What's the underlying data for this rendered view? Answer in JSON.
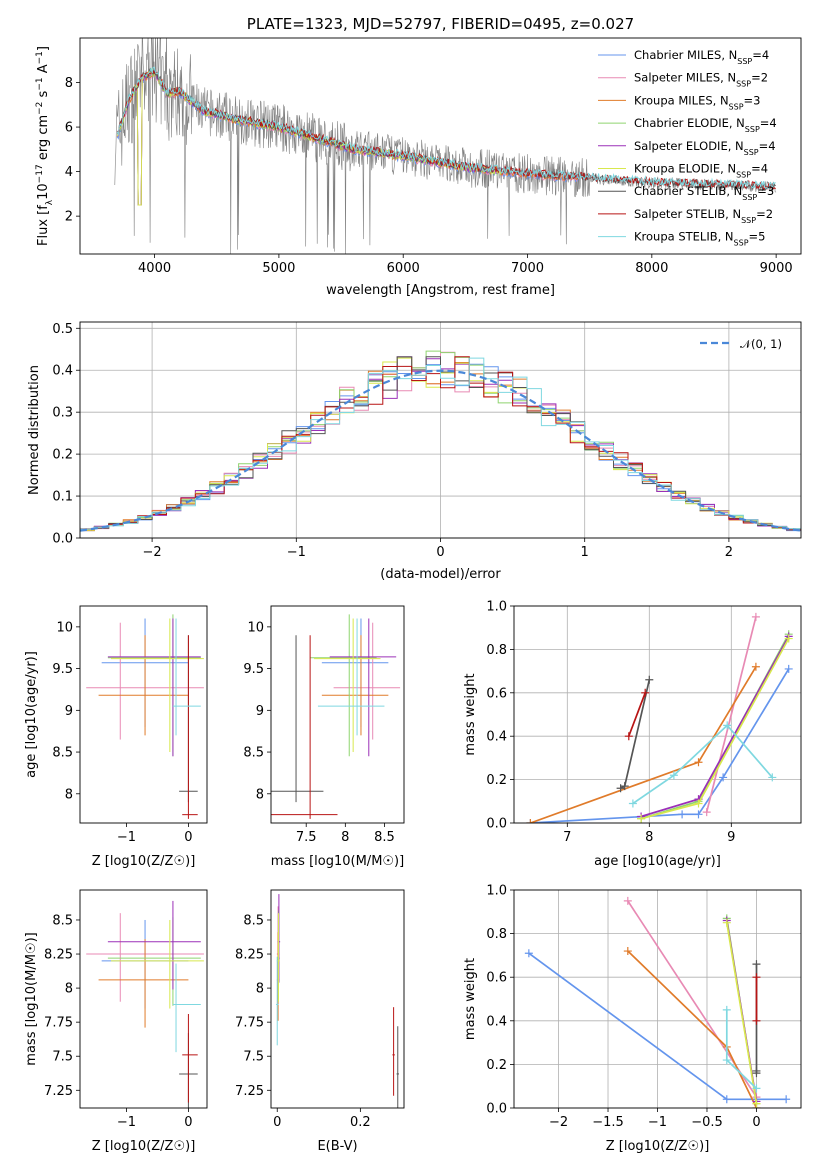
{
  "colors": {
    "chabrier_miles": "#6495ed",
    "salpeter_miles": "#e88ab4",
    "kroupa_miles": "#e07b2a",
    "chabrier_elodie": "#8fd46f",
    "salpeter_elodie": "#9b30b8",
    "kroupa_elodie": "#d8e84e",
    "chabrier_stelib": "#555555",
    "salpeter_stelib": "#b81414",
    "kroupa_stelib": "#7fd8e0",
    "data": "#808080",
    "gaussian": "#4a88d8"
  },
  "chart_data": [
    {
      "id": "spectrum",
      "type": "line",
      "title": "PLATE=1323, MJD=52797, FIBERID=0495, z=0.027",
      "xlabel": "wavelength [Angstrom, rest frame]",
      "ylabel": "Flux [f_λ10^-17 erg cm^-2 s^-1 A^-1]",
      "xlim": [
        3400,
        9200
      ],
      "ylim": [
        0.3,
        10
      ],
      "xticks": [
        4000,
        5000,
        6000,
        7000,
        8000,
        9000
      ],
      "yticks": [
        2,
        4,
        6,
        8
      ],
      "continuum_x": [
        3700,
        3800,
        3900,
        4000,
        4100,
        4200,
        4400,
        4700,
        5000,
        5300,
        5600,
        6000,
        6500,
        7000,
        7500,
        8000,
        8500,
        9000
      ],
      "continuum_y": [
        5.6,
        7.3,
        8.2,
        8.5,
        7.5,
        7.6,
        6.7,
        6.3,
        6.0,
        5.5,
        5.0,
        4.7,
        4.2,
        3.9,
        3.7,
        3.5,
        3.4,
        3.3
      ],
      "legend": [
        {
          "name": "Chabrier MILES, N",
          "sub": "SSP",
          "tail": "=4",
          "color": "#6495ed"
        },
        {
          "name": "Salpeter MILES, N",
          "sub": "SSP",
          "tail": "=2",
          "color": "#e88ab4"
        },
        {
          "name": "Kroupa MILES, N",
          "sub": "SSP",
          "tail": "=3",
          "color": "#e07b2a"
        },
        {
          "name": "Chabrier ELODIE, N",
          "sub": "SSP",
          "tail": "=4",
          "color": "#8fd46f"
        },
        {
          "name": "Salpeter ELODIE, N",
          "sub": "SSP",
          "tail": "=4",
          "color": "#9b30b8"
        },
        {
          "name": "Kroupa ELODIE, N",
          "sub": "SSP",
          "tail": "=4",
          "color": "#d8e84e"
        },
        {
          "name": "Chabrier STELIB, N",
          "sub": "SSP",
          "tail": "=3",
          "color": "#555555"
        },
        {
          "name": "Salpeter STELIB, N",
          "sub": "SSP",
          "tail": "=2",
          "color": "#b81414"
        },
        {
          "name": "Kroupa STELIB, N",
          "sub": "SSP",
          "tail": "=5",
          "color": "#7fd8e0"
        }
      ]
    },
    {
      "id": "residuals",
      "type": "step",
      "xlabel": "(data-model)/error",
      "ylabel": "Normed distribution",
      "xlim": [
        -2.5,
        2.5
      ],
      "ylim": [
        0,
        0.515
      ],
      "xticks": [
        -2,
        -1,
        0,
        1,
        2
      ],
      "yticks": [
        0.0,
        0.1,
        0.2,
        0.3,
        0.4,
        0.5
      ],
      "legend_label": "𝒩(0, 1)",
      "bin_width": 0.1
    },
    {
      "id": "age_vs_Z",
      "type": "errorbar",
      "xlabel": "Z [log10(Z/Z☉)]",
      "ylabel": "age [log10(age/yr)]",
      "xlim": [
        -1.75,
        0.3
      ],
      "ylim": [
        7.65,
        10.25
      ],
      "xticks": [
        -1,
        0
      ],
      "yticks": [
        8.0,
        8.5,
        9.0,
        9.5,
        10.0
      ]
    },
    {
      "id": "age_vs_mass",
      "type": "errorbar",
      "xlabel": "mass [log10(M/M☉)]",
      "ylabel": "",
      "xlim": [
        7.05,
        8.75
      ],
      "ylim": [
        7.65,
        10.25
      ],
      "xticks": [
        7.5,
        8.0,
        8.5
      ],
      "yticks": [
        8.0,
        8.5,
        9.0,
        9.5,
        10.0
      ]
    },
    {
      "id": "mass_weight_vs_age",
      "type": "line",
      "xlabel": "age [log10(age/yr)]",
      "ylabel": "mass weight",
      "xlim": [
        6.35,
        9.85
      ],
      "ylim": [
        0,
        1.0
      ],
      "xticks": [
        7,
        8,
        9
      ],
      "yticks": [
        0.0,
        0.2,
        0.4,
        0.6,
        0.8,
        1.0
      ]
    },
    {
      "id": "mass_vs_Z",
      "type": "errorbar",
      "xlabel": "Z [log10(Z/Z☉)]",
      "ylabel": "mass [log10(M/M☉)]",
      "xlim": [
        -1.75,
        0.3
      ],
      "ylim": [
        7.12,
        8.72
      ],
      "xticks": [
        -1,
        0
      ],
      "yticks": [
        7.25,
        7.5,
        7.75,
        8.0,
        8.25,
        8.5
      ]
    },
    {
      "id": "mass_vs_EBV",
      "type": "errorbar",
      "xlabel": "E(B-V)",
      "ylabel": "",
      "xlim": [
        -0.015,
        0.305
      ],
      "ylim": [
        7.12,
        8.72
      ],
      "xticks": [
        0.0,
        0.2
      ],
      "yticks": [
        7.25,
        7.5,
        7.75,
        8.0,
        8.25,
        8.5
      ]
    },
    {
      "id": "mass_weight_vs_Z",
      "type": "line",
      "xlabel": "Z [log10(Z/Z☉)]",
      "ylabel": "mass weight",
      "xlim": [
        -2.45,
        0.45
      ],
      "ylim": [
        0,
        1.0
      ],
      "xticks": [
        -2.0,
        -1.5,
        -1.0,
        -0.5,
        0.0
      ],
      "yticks": [
        0.0,
        0.2,
        0.4,
        0.6,
        0.8,
        1.0
      ]
    }
  ],
  "series_points": {
    "ages": {
      "chabrier_miles": [
        [
          6.55,
          0.0
        ],
        [
          8.4,
          0.04
        ],
        [
          8.6,
          0.04
        ],
        [
          8.9,
          0.21
        ],
        [
          9.7,
          0.71
        ]
      ],
      "salpeter_miles": [
        [
          8.7,
          0.05
        ],
        [
          9.3,
          0.95
        ]
      ],
      "kroupa_miles": [
        [
          6.55,
          0.0
        ],
        [
          8.6,
          0.28
        ],
        [
          9.3,
          0.72
        ]
      ],
      "chabrier_elodie": [
        [
          7.9,
          0.02
        ],
        [
          8.6,
          0.1
        ],
        [
          9.7,
          0.87
        ]
      ],
      "salpeter_elodie": [
        [
          7.9,
          0.03
        ],
        [
          8.6,
          0.11
        ],
        [
          9.7,
          0.86
        ]
      ],
      "kroupa_elodie": [
        [
          7.9,
          0.02
        ],
        [
          8.6,
          0.09
        ],
        [
          9.7,
          0.85
        ]
      ],
      "chabrier_stelib": [
        [
          7.65,
          0.16
        ],
        [
          7.7,
          0.17
        ],
        [
          8.0,
          0.66
        ]
      ],
      "salpeter_stelib": [
        [
          7.75,
          0.4
        ],
        [
          7.95,
          0.6
        ]
      ],
      "kroupa_stelib": [
        [
          7.8,
          0.09
        ],
        [
          8.3,
          0.22
        ],
        [
          8.95,
          0.45
        ],
        [
          9.5,
          0.21
        ]
      ]
    },
    "metallicities": {
      "chabrier_miles": [
        [
          -2.3,
          0.71
        ],
        [
          -0.3,
          0.04
        ],
        [
          0.3,
          0.04
        ]
      ],
      "salpeter_miles": [
        [
          -1.3,
          0.95
        ],
        [
          0.0,
          0.05
        ]
      ],
      "kroupa_miles": [
        [
          -1.3,
          0.72
        ],
        [
          -0.3,
          0.28
        ],
        [
          0.0,
          0.0
        ]
      ],
      "chabrier_elodie": [
        [
          -0.3,
          0.87
        ],
        [
          0.0,
          0.02
        ]
      ],
      "salpeter_elodie": [
        [
          -0.3,
          0.86
        ],
        [
          0.0,
          0.03
        ]
      ],
      "kroupa_elodie": [
        [
          -0.3,
          0.85
        ],
        [
          0.0,
          0.02
        ]
      ],
      "chabrier_stelib": [
        [
          0.0,
          0.66
        ],
        [
          0.0,
          0.16
        ],
        [
          0.0,
          0.17
        ]
      ],
      "salpeter_stelib": [
        [
          0.0,
          0.6
        ],
        [
          0.0,
          0.4
        ]
      ],
      "kroupa_stelib": [
        [
          -0.3,
          0.45
        ],
        [
          -0.3,
          0.22
        ],
        [
          0.0,
          0.09
        ]
      ]
    },
    "agez_errorbars": [
      {
        "k": "chabrier_miles",
        "x": -0.7,
        "xe": [
          -1.4,
          0.0
        ],
        "y": 9.57,
        "ye": [
          8.8,
          10.1
        ]
      },
      {
        "k": "salpeter_miles",
        "x": -1.1,
        "xe": [
          -1.65,
          0.25
        ],
        "y": 9.27,
        "ye": [
          8.65,
          10.05
        ]
      },
      {
        "k": "kroupa_miles",
        "x": -0.7,
        "xe": [
          -1.45,
          0.0
        ],
        "y": 9.18,
        "ye": [
          8.7,
          9.9
        ]
      },
      {
        "k": "chabrier_elodie",
        "x": -0.25,
        "xe": [
          -1.3,
          0.2
        ],
        "y": 9.63,
        "ye": [
          8.45,
          10.15
        ]
      },
      {
        "k": "salpeter_elodie",
        "x": -0.25,
        "xe": [
          -1.3,
          0.2
        ],
        "y": 9.64,
        "ye": [
          8.45,
          10.1
        ]
      },
      {
        "k": "kroupa_elodie",
        "x": -0.3,
        "xe": [
          -1.25,
          0.25
        ],
        "y": 9.62,
        "ye": [
          8.5,
          10.1
        ]
      },
      {
        "k": "chabrier_stelib",
        "x": 0.0,
        "xe": [
          -0.15,
          0.15
        ],
        "y": 8.03,
        "ye": [
          7.9,
          9.9
        ]
      },
      {
        "k": "salpeter_stelib",
        "x": 0.0,
        "xe": [
          -0.1,
          0.15
        ],
        "y": 7.75,
        "ye": [
          7.7,
          9.9
        ]
      },
      {
        "k": "kroupa_stelib",
        "x": -0.2,
        "xe": [
          -0.25,
          0.2
        ],
        "y": 9.05,
        "ye": [
          8.7,
          10.1
        ]
      }
    ]
  }
}
